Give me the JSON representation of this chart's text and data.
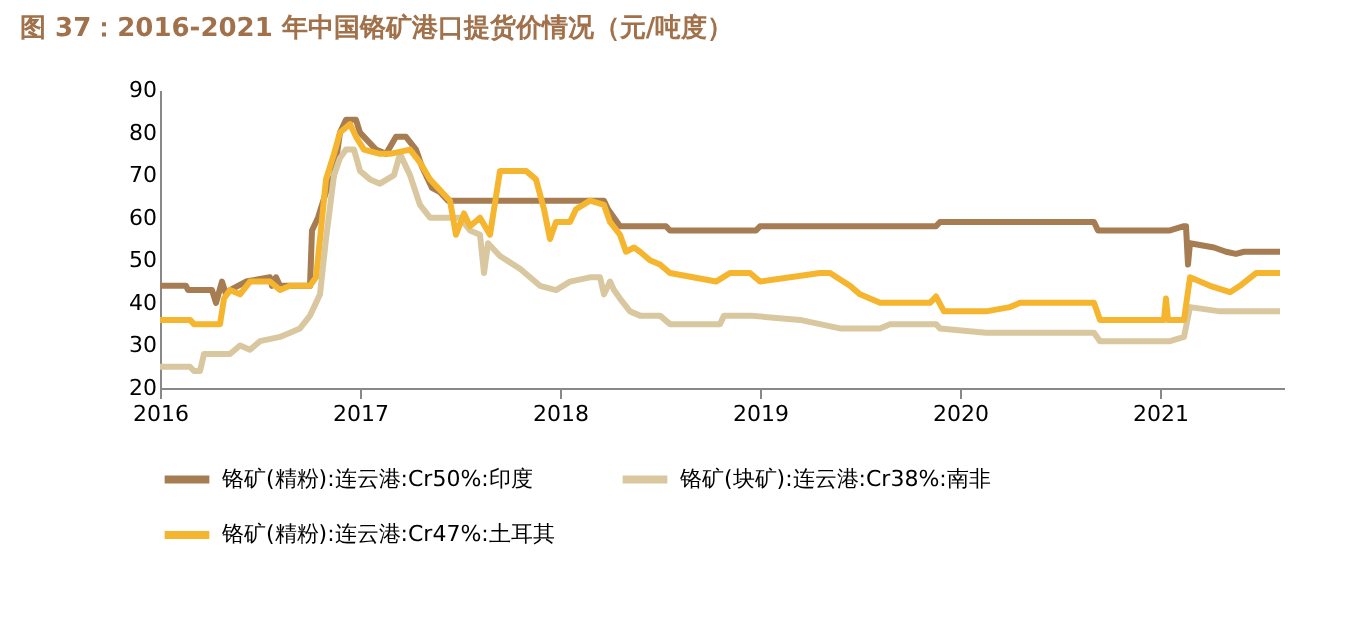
{
  "chart_data": {
    "type": "line",
    "title": "图 37：2016-2021 年中国铬矿港口提货价情况（元/吨度）",
    "xlim": [
      2016,
      2021.62
    ],
    "xticks": [
      2016,
      2017,
      2018,
      2019,
      2020,
      2021
    ],
    "ylim": [
      20,
      90
    ],
    "yticks": [
      20,
      30,
      40,
      50,
      60,
      70,
      80,
      90
    ],
    "legend": "bottom",
    "grid": false,
    "series": [
      {
        "name": "铬矿(精粉):连云港:Cr50%:印度",
        "color": "#a67c52",
        "x": [
          2016.0,
          2016.13,
          2016.14,
          2016.26,
          2016.28,
          2016.31,
          2016.33,
          2016.35,
          2016.43,
          2016.55,
          2016.56,
          2016.58,
          2016.6,
          2016.62,
          2016.75,
          2016.76,
          2016.79,
          2016.83,
          2016.87,
          2016.9,
          2016.93,
          2016.98,
          2017.0,
          2017.08,
          2017.13,
          2017.18,
          2017.23,
          2017.28,
          2017.31,
          2017.36,
          2017.4,
          2017.44,
          2018.22,
          2018.24,
          2018.3,
          2018.53,
          2018.55,
          2018.98,
          2019.0,
          2019.88,
          2019.9,
          2020.67,
          2020.69,
          2021.05,
          2021.12,
          2021.13,
          2021.14,
          2021.15,
          2021.27,
          2021.33,
          2021.38,
          2021.42,
          2021.6
        ],
        "values": [
          44,
          44,
          43,
          43,
          40,
          45,
          42,
          43,
          45,
          46,
          44,
          46,
          44,
          44,
          44,
          57,
          60,
          66,
          70,
          80,
          83,
          83,
          80,
          76,
          75,
          79,
          79,
          76,
          72,
          67,
          66,
          64,
          64,
          62,
          58,
          58,
          57,
          57,
          58,
          58,
          59,
          59,
          57,
          57,
          58,
          58,
          49,
          54,
          53,
          52,
          51.5,
          52,
          52
        ]
      },
      {
        "name": "铬矿(块矿):连云港:Cr38%:南非",
        "color": "#d9c7a0",
        "x": [
          2016.0,
          2016.15,
          2016.17,
          2016.2,
          2016.22,
          2016.35,
          2016.4,
          2016.45,
          2016.5,
          2016.6,
          2016.65,
          2016.7,
          2016.75,
          2016.78,
          2016.8,
          2016.83,
          2016.87,
          2016.9,
          2016.93,
          2016.97,
          2017.0,
          2017.05,
          2017.1,
          2017.17,
          2017.2,
          2017.25,
          2017.3,
          2017.35,
          2017.5,
          2017.55,
          2017.6,
          2017.62,
          2017.64,
          2017.7,
          2017.8,
          2017.9,
          2017.98,
          2018.05,
          2018.15,
          2018.2,
          2018.22,
          2018.25,
          2018.27,
          2018.3,
          2018.35,
          2018.4,
          2018.5,
          2018.55,
          2018.8,
          2018.82,
          2018.95,
          2019.2,
          2019.4,
          2019.6,
          2019.65,
          2019.88,
          2019.9,
          2020.13,
          2020.67,
          2020.7,
          2021.05,
          2021.12,
          2021.15,
          2021.3,
          2021.6
        ],
        "values": [
          25,
          25,
          24,
          24,
          28,
          28,
          30,
          29,
          31,
          32,
          33,
          34,
          37,
          40,
          42,
          55,
          70,
          74,
          76,
          76,
          71,
          69,
          68,
          70,
          75,
          70,
          63,
          60,
          60,
          57,
          56,
          47,
          54,
          51,
          48,
          44,
          43,
          45,
          46,
          46,
          42,
          45,
          43,
          41,
          38,
          37,
          37,
          35,
          35,
          37,
          37,
          36,
          34,
          34,
          35,
          35,
          34,
          33,
          33,
          31,
          31,
          32,
          39,
          38,
          38
        ]
      },
      {
        "name": "铬矿(精粉):连云港:Cr47%:土耳其",
        "color": "#f5b52e",
        "x": [
          2016.0,
          2016.15,
          2016.17,
          2016.3,
          2016.32,
          2016.35,
          2016.4,
          2016.45,
          2016.55,
          2016.6,
          2016.65,
          2016.75,
          2016.78,
          2016.8,
          2016.83,
          2016.87,
          2016.9,
          2016.95,
          2016.98,
          2017.02,
          2017.1,
          2017.15,
          2017.25,
          2017.3,
          2017.35,
          2017.45,
          2017.48,
          2017.52,
          2017.55,
          2017.6,
          2017.65,
          2017.7,
          2017.83,
          2017.88,
          2017.92,
          2017.95,
          2017.98,
          2018.05,
          2018.08,
          2018.15,
          2018.22,
          2018.25,
          2018.3,
          2018.33,
          2018.37,
          2018.4,
          2018.45,
          2018.5,
          2018.55,
          2018.78,
          2018.85,
          2018.95,
          2019.0,
          2019.3,
          2019.35,
          2019.45,
          2019.5,
          2019.6,
          2019.85,
          2019.88,
          2019.92,
          2020.13,
          2020.25,
          2020.3,
          2020.67,
          2020.7,
          2021.02,
          2021.03,
          2021.04,
          2021.12,
          2021.15,
          2021.25,
          2021.35,
          2021.4,
          2021.48,
          2021.6
        ],
        "values": [
          36,
          36,
          35,
          35,
          41,
          43,
          42,
          45,
          45,
          43,
          44,
          44,
          46,
          55,
          69,
          75,
          80,
          82,
          79,
          76,
          75,
          75,
          76,
          73,
          69,
          64,
          56,
          61,
          58,
          60,
          56,
          71,
          71,
          69,
          62,
          55,
          59,
          59,
          62,
          64,
          63,
          59,
          56,
          52,
          53,
          52,
          50,
          49,
          47,
          45,
          47,
          47,
          45,
          47,
          47,
          44,
          42,
          40,
          40,
          41.5,
          38,
          38,
          39,
          40,
          40,
          36,
          36,
          41,
          36,
          36,
          46,
          44,
          42.5,
          44,
          47,
          47
        ]
      }
    ]
  }
}
